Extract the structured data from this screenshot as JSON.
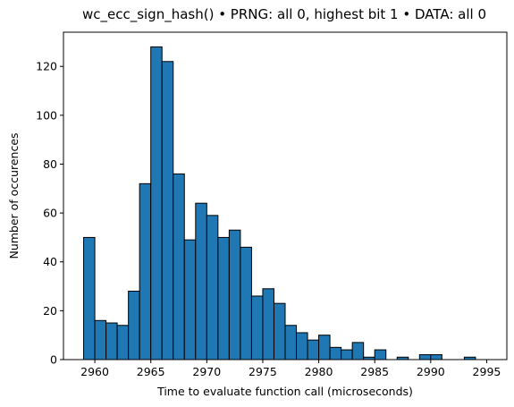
{
  "chart_data": {
    "type": "bar",
    "title": "wc_ecc_sign_hash() • PRNG: all 0, highest bit 1 • DATA: all 0",
    "xlabel": "Time to evaluate function call (microseconds)",
    "ylabel": "Number of occurences",
    "bin_start": 2959,
    "bin_width": 1,
    "values": [
      50,
      16,
      15,
      14,
      28,
      72,
      128,
      122,
      76,
      49,
      64,
      59,
      50,
      53,
      46,
      26,
      29,
      23,
      14,
      11,
      8,
      10,
      5,
      4,
      7,
      1,
      4,
      0,
      1,
      0,
      2,
      2,
      0,
      0,
      1
    ],
    "xlim": [
      2957.2,
      2996.8
    ],
    "ylim": [
      0,
      134
    ],
    "xticks": [
      2960,
      2965,
      2970,
      2975,
      2980,
      2985,
      2990,
      2995
    ],
    "yticks": [
      0,
      20,
      40,
      60,
      80,
      100,
      120
    ],
    "bar_color": "#1f77b4",
    "edge_color": "#000000",
    "grid": false,
    "legend": "none"
  }
}
